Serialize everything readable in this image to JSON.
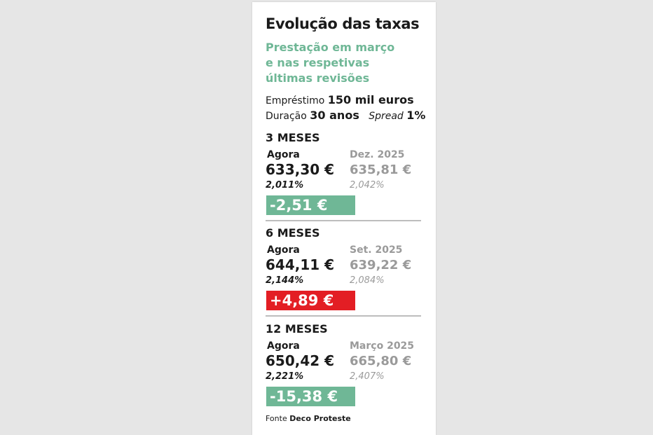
{
  "title": "Evolução das taxas",
  "subtitle": {
    "line1": "Prestação em março",
    "line2": "e nas respetivas",
    "line3": "últimas revisões"
  },
  "loan": {
    "label": "Empréstimo",
    "value": "150 mil euros"
  },
  "duration": {
    "label": "Duração",
    "value": "30 anos",
    "spread_label": "Spread",
    "spread_value": "1%"
  },
  "sections": [
    {
      "title": "3 MESES",
      "now_label": "Agora",
      "prev_label": "Dez. 2025",
      "now_amount": "633,30 €",
      "prev_amount": "635,81 €",
      "now_rate": "2,011%",
      "prev_rate": "2,042%",
      "diff": "-2,51 €",
      "diff_color": "#6fb796"
    },
    {
      "title": "6 MESES",
      "now_label": "Agora",
      "prev_label": "Set. 2025",
      "now_amount": "644,11 €",
      "prev_amount": "639,22 €",
      "now_rate": "2,144%",
      "prev_rate": "2,084%",
      "diff": "+4,89 €",
      "diff_color": "#e31e24"
    },
    {
      "title": "12 MESES",
      "now_label": "Agora",
      "prev_label": "Março 2025",
      "now_amount": "650,42 €",
      "prev_amount": "665,80 €",
      "now_rate": "2,221%",
      "prev_rate": "2,407%",
      "diff": "-15,38 €",
      "diff_color": "#6fb796"
    }
  ],
  "source": {
    "label": "Fonte",
    "value": "Deco Proteste"
  }
}
